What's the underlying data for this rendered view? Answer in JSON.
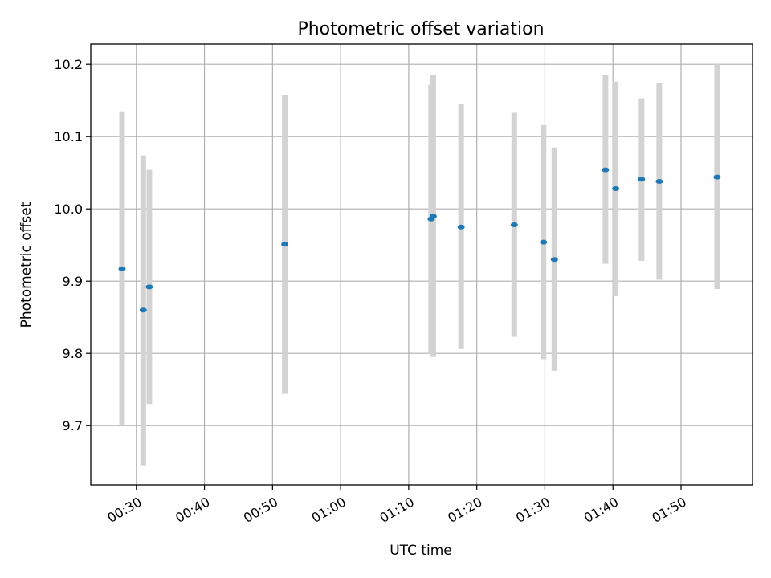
{
  "chart_data": {
    "type": "scatter",
    "title": "Photometric offset variation",
    "xlabel": "UTC time",
    "ylabel": "Photometric offset",
    "x_tick_labels": [
      "00:30",
      "00:40",
      "00:50",
      "01:00",
      "01:10",
      "01:20",
      "01:30",
      "01:40",
      "01:50"
    ],
    "y_tick_labels": [
      "9.7",
      "9.8",
      "9.9",
      "10.0",
      "10.1",
      "10.2"
    ],
    "x_range": [
      "00:23.3",
      "02:00.5"
    ],
    "ylim": [
      9.618,
      10.228
    ],
    "grid": true,
    "point_color": "#1f77b4",
    "errorbar_color": "#d3d3d3",
    "points": [
      {
        "time": "00:27.9",
        "y": 9.917,
        "ylow": 9.7,
        "yhigh": 10.135
      },
      {
        "time": "00:31.0",
        "y": 9.86,
        "ylow": 9.645,
        "yhigh": 10.074
      },
      {
        "time": "00:31.9",
        "y": 9.892,
        "ylow": 9.73,
        "yhigh": 10.054
      },
      {
        "time": "00:51.8",
        "y": 9.951,
        "ylow": 9.744,
        "yhigh": 10.158
      },
      {
        "time": "01:13.3",
        "y": 9.986,
        "ylow": 9.8,
        "yhigh": 10.172
      },
      {
        "time": "01:13.6",
        "y": 9.99,
        "ylow": 9.795,
        "yhigh": 10.185
      },
      {
        "time": "01:17.7",
        "y": 9.975,
        "ylow": 9.806,
        "yhigh": 10.145
      },
      {
        "time": "01:25.5",
        "y": 9.978,
        "ylow": 9.823,
        "yhigh": 10.133
      },
      {
        "time": "01:29.8",
        "y": 9.954,
        "ylow": 9.792,
        "yhigh": 10.116
      },
      {
        "time": "01:31.4",
        "y": 9.93,
        "ylow": 9.776,
        "yhigh": 10.085
      },
      {
        "time": "01:38.9",
        "y": 10.054,
        "ylow": 9.924,
        "yhigh": 10.185
      },
      {
        "time": "01:40.4",
        "y": 10.028,
        "ylow": 9.879,
        "yhigh": 10.176
      },
      {
        "time": "01:44.2",
        "y": 10.041,
        "ylow": 9.928,
        "yhigh": 10.153
      },
      {
        "time": "01:46.8",
        "y": 10.038,
        "ylow": 9.902,
        "yhigh": 10.174
      },
      {
        "time": "01:55.3",
        "y": 10.044,
        "ylow": 9.889,
        "yhigh": 10.2
      }
    ]
  }
}
